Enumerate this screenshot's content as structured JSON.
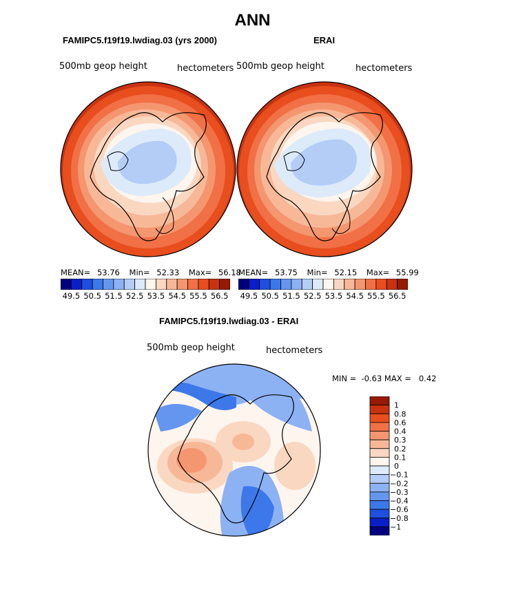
{
  "title": "ANN",
  "colors": {
    "abs_scale": [
      "#00007e",
      "#0a1ec8",
      "#1e4fe0",
      "#3c78ea",
      "#6496f0",
      "#8cb2f4",
      "#b4cdf7",
      "#dceaf9",
      "#fdf5ee",
      "#fad7c1",
      "#f7b898",
      "#f4966f",
      "#f17045",
      "#e84e1e",
      "#c83210",
      "#961a04"
    ],
    "diff_scale": [
      "#00007e",
      "#0a1ec8",
      "#1e4fe0",
      "#3c78ea",
      "#6496f0",
      "#8cb2f4",
      "#b4cdf7",
      "#dceaf9",
      "#fdf5ee",
      "#fad7c1",
      "#f7b898",
      "#f4966f",
      "#f17045",
      "#e84e1e",
      "#c83210",
      "#961a04"
    ]
  },
  "panels": [
    {
      "id": "model",
      "title": "FAMIPC5.f19f19.lwdiag.03 (yrs 2000)",
      "variable": "500mb geop height",
      "units": "hectometers",
      "stats": {
        "mean_label": "MEAN=",
        "mean": "53.76",
        "min_label": "Min=",
        "min": "52.33",
        "max_label": "Max=",
        "max": "56.18"
      },
      "colorbar_labels": [
        "49.5",
        "50.5",
        "51.5",
        "52.5",
        "53.5",
        "54.5",
        "55.5",
        "56.5"
      ]
    },
    {
      "id": "obs",
      "title": "ERAI",
      "variable": "500mb geop height",
      "units": "hectometers",
      "stats": {
        "mean_label": "MEAN=",
        "mean": "53.75",
        "min_label": "Min=",
        "min": "52.15",
        "max_label": "Max=",
        "max": "55.99"
      },
      "colorbar_labels": [
        "49.5",
        "50.5",
        "51.5",
        "52.5",
        "53.5",
        "54.5",
        "55.5",
        "56.5"
      ]
    }
  ],
  "difference": {
    "title": "FAMIPC5.f19f19.lwdiag.03 - ERAI",
    "variable": "500mb geop height",
    "units": "hectometers",
    "stats_text": "MIN =  -0.63 MAX =   0.42",
    "colorbar_labels": [
      "1",
      "0.8",
      "0.6",
      "0.4",
      "0.3",
      "0.2",
      "0.1",
      "0",
      "-0.1",
      "-0.2",
      "-0.3",
      "-0.4",
      "-0.6",
      "-0.8",
      "-1"
    ]
  }
}
